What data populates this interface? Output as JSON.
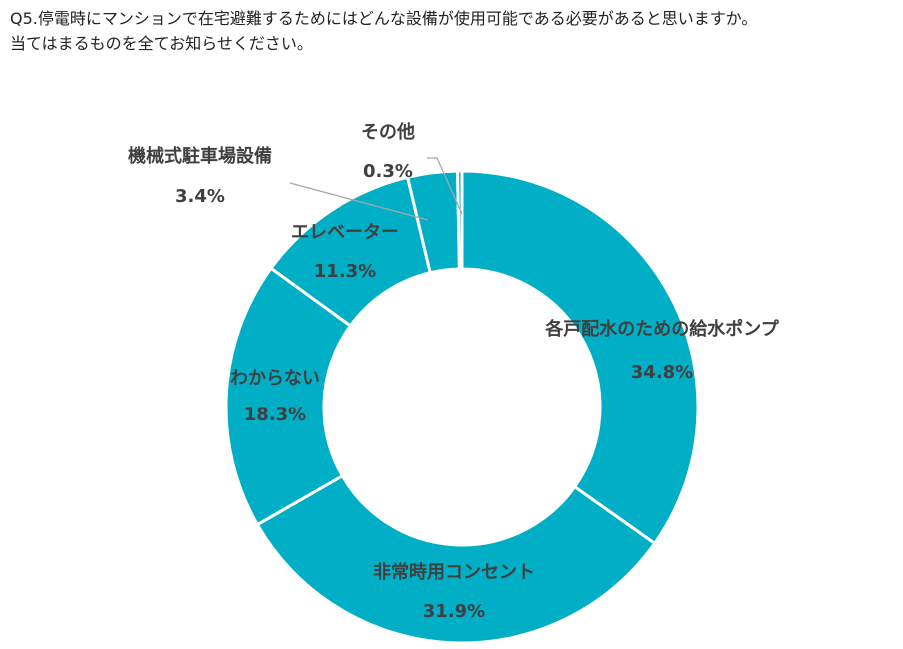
{
  "question": {
    "line1": "Q5.停電時にマンションで在宅避難するためにはどんな設備が使用可能である必要があると思いますか。",
    "line2": "当てはまるものを全てお知らせください。"
  },
  "chart_data": {
    "type": "pie",
    "title": "",
    "slices": [
      {
        "label": "各戸配水のための給水ポンプ",
        "value": 34.8,
        "display": "34.8%"
      },
      {
        "label": "非常時用コンセント",
        "value": 31.9,
        "display": "31.9%"
      },
      {
        "label": "わからない",
        "value": 18.3,
        "display": "18.3%"
      },
      {
        "label": "エレベーター",
        "value": 11.3,
        "display": "11.3%"
      },
      {
        "label": "機械式駐車場設備",
        "value": 3.4,
        "display": "3.4%"
      },
      {
        "label": "その他",
        "value": 0.3,
        "display": "0.3%"
      }
    ],
    "color": "#00aec6",
    "separator_color": "#ffffff",
    "leader_color": "#a6a6a6",
    "donut": true
  }
}
